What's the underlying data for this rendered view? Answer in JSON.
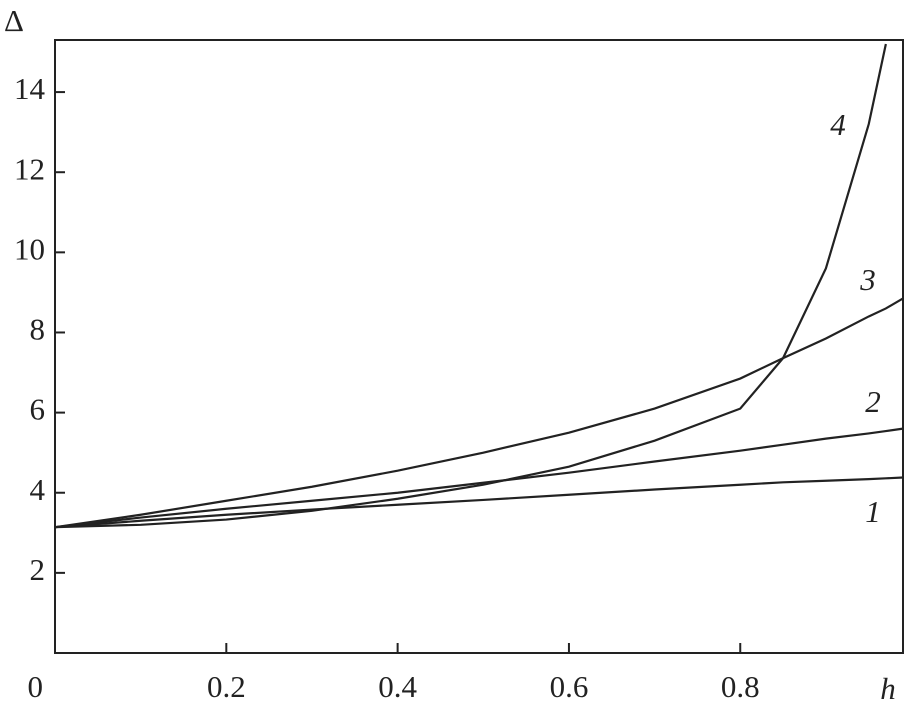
{
  "chart_data": {
    "type": "line",
    "x_label": "h",
    "y_label": "Δ",
    "x": [
      0,
      0.1,
      0.2,
      0.3,
      0.4,
      0.5,
      0.6,
      0.7,
      0.8,
      0.85,
      0.9,
      0.95,
      0.97,
      0.99
    ],
    "series": [
      {
        "name": "1",
        "color": "#222222",
        "values": [
          3.14,
          3.3,
          3.45,
          3.58,
          3.7,
          3.82,
          3.95,
          4.08,
          4.2,
          4.26,
          4.3,
          4.34,
          4.36,
          4.38
        ]
      },
      {
        "name": "2",
        "color": "#222222",
        "values": [
          3.14,
          3.38,
          3.6,
          3.8,
          4.0,
          4.25,
          4.5,
          4.78,
          5.05,
          5.2,
          5.35,
          5.48,
          5.54,
          5.6
        ]
      },
      {
        "name": "3",
        "color": "#222222",
        "values": [
          3.14,
          3.45,
          3.8,
          4.15,
          4.55,
          5.0,
          5.5,
          6.1,
          6.85,
          7.36,
          7.85,
          8.4,
          8.6,
          8.85
        ]
      },
      {
        "name": "4",
        "color": "#222222",
        "values": [
          3.14,
          3.2,
          3.33,
          3.55,
          3.85,
          4.2,
          4.65,
          5.3,
          6.1,
          7.36,
          9.6,
          13.2,
          15.2,
          null
        ]
      }
    ],
    "xlim": [
      0,
      0.99
    ],
    "ylim": [
      0,
      15.3
    ],
    "xticks": [
      0,
      0.2,
      0.4,
      0.6,
      0.8
    ],
    "yticks": [
      2,
      4,
      6,
      8,
      10,
      12,
      14
    ],
    "grid": false
  }
}
